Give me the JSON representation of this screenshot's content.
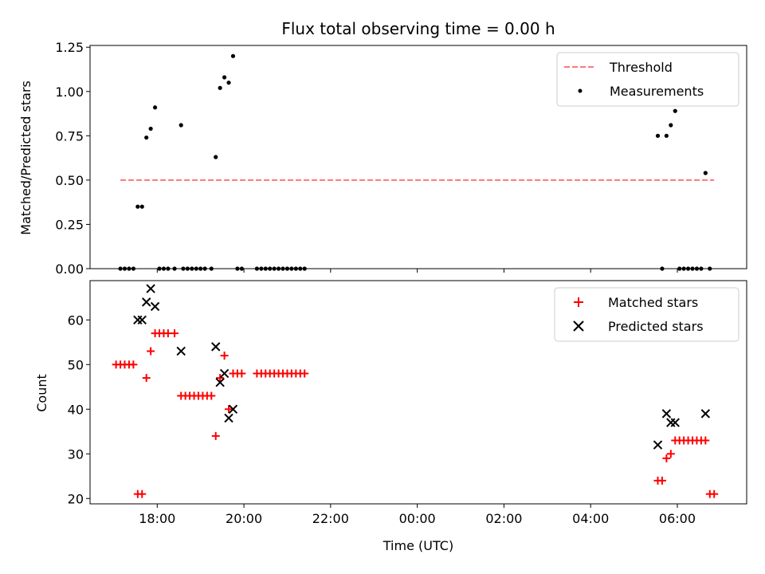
{
  "chart_data": [
    {
      "type": "scatter",
      "title": "Flux total observing time = 0.00 h",
      "xlabel": "",
      "ylabel": "Matched/Predicted stars",
      "xlim": [
        -1.55,
        13.6
      ],
      "ylim": [
        0,
        1.26
      ],
      "yticks": [
        0.0,
        0.25,
        0.5,
        0.75,
        1.0,
        1.25
      ],
      "ytick_labels": [
        "0.00",
        "0.25",
        "0.50",
        "0.75",
        "1.00",
        "1.25"
      ],
      "legend_position": "top-right",
      "legend": [
        "Threshold",
        "Measurements"
      ],
      "series": [
        {
          "name": "Threshold",
          "kind": "dashed-line",
          "color": "#ff7777",
          "points": [
            [
              -0.85,
              0.5
            ],
            [
              12.85,
              0.5
            ]
          ]
        },
        {
          "name": "Measurements",
          "kind": "dots",
          "color": "#000000",
          "points": [
            [
              -0.85,
              0.0
            ],
            [
              -0.75,
              0.0
            ],
            [
              -0.65,
              0.0
            ],
            [
              -0.55,
              0.0
            ],
            [
              -0.45,
              0.35
            ],
            [
              -0.35,
              0.35
            ],
            [
              -0.25,
              0.74
            ],
            [
              -0.15,
              0.79
            ],
            [
              -0.05,
              0.91
            ],
            [
              0.05,
              0.0
            ],
            [
              0.15,
              0.0
            ],
            [
              0.25,
              0.0
            ],
            [
              0.4,
              0.0
            ],
            [
              0.55,
              0.81
            ],
            [
              0.6,
              0.0
            ],
            [
              0.7,
              0.0
            ],
            [
              0.8,
              0.0
            ],
            [
              0.9,
              0.0
            ],
            [
              1.0,
              0.0
            ],
            [
              1.1,
              0.0
            ],
            [
              1.25,
              0.0
            ],
            [
              1.35,
              0.63
            ],
            [
              1.45,
              1.02
            ],
            [
              1.55,
              1.08
            ],
            [
              1.65,
              1.05
            ],
            [
              1.75,
              1.2
            ],
            [
              1.85,
              0.0
            ],
            [
              1.95,
              0.0
            ],
            [
              2.3,
              0.0
            ],
            [
              2.4,
              0.0
            ],
            [
              2.5,
              0.0
            ],
            [
              2.6,
              0.0
            ],
            [
              2.7,
              0.0
            ],
            [
              2.8,
              0.0
            ],
            [
              2.9,
              0.0
            ],
            [
              3.0,
              0.0
            ],
            [
              3.1,
              0.0
            ],
            [
              3.2,
              0.0
            ],
            [
              3.3,
              0.0
            ],
            [
              3.4,
              0.0
            ],
            [
              11.55,
              0.75
            ],
            [
              11.65,
              0.0
            ],
            [
              11.75,
              0.75
            ],
            [
              11.85,
              0.81
            ],
            [
              11.95,
              0.89
            ],
            [
              12.05,
              0.0
            ],
            [
              12.15,
              0.0
            ],
            [
              12.25,
              0.0
            ],
            [
              12.35,
              0.0
            ],
            [
              12.45,
              0.0
            ],
            [
              12.55,
              0.0
            ],
            [
              12.65,
              0.54
            ],
            [
              12.75,
              0.0
            ]
          ]
        }
      ]
    },
    {
      "type": "scatter",
      "title": "",
      "xlabel": "Time (UTC)",
      "ylabel": "Count",
      "xlim": [
        -1.55,
        13.6
      ],
      "ylim": [
        18.8,
        68.8
      ],
      "yticks": [
        20,
        30,
        40,
        50,
        60
      ],
      "ytick_labels": [
        "20",
        "30",
        "40",
        "50",
        "60"
      ],
      "xticks": [
        0,
        2,
        4,
        6,
        8,
        10,
        12
      ],
      "xtick_labels": [
        "18:00",
        "20:00",
        "22:00",
        "00:00",
        "02:00",
        "04:00",
        "06:00"
      ],
      "legend_position": "top-right",
      "legend": [
        "Matched stars",
        "Predicted stars"
      ],
      "series": [
        {
          "name": "Matched stars",
          "kind": "plus",
          "color": "#ff0000",
          "points": [
            [
              -0.95,
              50
            ],
            [
              -0.85,
              50
            ],
            [
              -0.75,
              50
            ],
            [
              -0.65,
              50
            ],
            [
              -0.55,
              50
            ],
            [
              -0.45,
              21
            ],
            [
              -0.35,
              21
            ],
            [
              -0.25,
              47
            ],
            [
              -0.15,
              53
            ],
            [
              -0.05,
              57
            ],
            [
              0.05,
              57
            ],
            [
              0.15,
              57
            ],
            [
              0.25,
              57
            ],
            [
              0.4,
              57
            ],
            [
              0.55,
              43
            ],
            [
              0.65,
              43
            ],
            [
              0.75,
              43
            ],
            [
              0.85,
              43
            ],
            [
              0.95,
              43
            ],
            [
              1.05,
              43
            ],
            [
              1.15,
              43
            ],
            [
              1.25,
              43
            ],
            [
              1.35,
              34
            ],
            [
              1.45,
              47
            ],
            [
              1.55,
              52
            ],
            [
              1.65,
              40
            ],
            [
              1.75,
              48
            ],
            [
              1.85,
              48
            ],
            [
              1.95,
              48
            ],
            [
              2.3,
              48
            ],
            [
              2.4,
              48
            ],
            [
              2.5,
              48
            ],
            [
              2.6,
              48
            ],
            [
              2.7,
              48
            ],
            [
              2.8,
              48
            ],
            [
              2.9,
              48
            ],
            [
              3.0,
              48
            ],
            [
              3.1,
              48
            ],
            [
              3.2,
              48
            ],
            [
              3.3,
              48
            ],
            [
              3.4,
              48
            ],
            [
              11.55,
              24
            ],
            [
              11.65,
              24
            ],
            [
              11.75,
              29
            ],
            [
              11.85,
              30
            ],
            [
              11.95,
              33
            ],
            [
              12.05,
              33
            ],
            [
              12.15,
              33
            ],
            [
              12.25,
              33
            ],
            [
              12.35,
              33
            ],
            [
              12.45,
              33
            ],
            [
              12.55,
              33
            ],
            [
              12.65,
              33
            ],
            [
              12.75,
              21
            ],
            [
              12.85,
              21
            ]
          ]
        },
        {
          "name": "Predicted stars",
          "kind": "cross",
          "color": "#000000",
          "points": [
            [
              -0.45,
              60
            ],
            [
              -0.35,
              60
            ],
            [
              -0.25,
              64
            ],
            [
              -0.15,
              67
            ],
            [
              -0.05,
              63
            ],
            [
              0.55,
              53
            ],
            [
              1.35,
              54
            ],
            [
              1.45,
              46
            ],
            [
              1.55,
              48
            ],
            [
              1.65,
              38
            ],
            [
              1.75,
              40
            ],
            [
              11.55,
              32
            ],
            [
              11.75,
              39
            ],
            [
              11.85,
              37
            ],
            [
              11.95,
              37
            ],
            [
              12.65,
              39
            ]
          ]
        }
      ]
    }
  ]
}
